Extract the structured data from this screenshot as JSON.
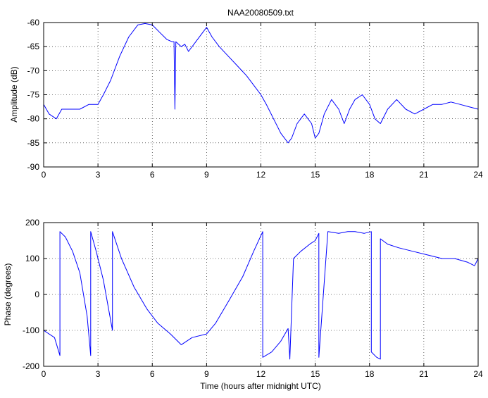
{
  "chart_data": [
    {
      "type": "line",
      "title": "NAA20080509.txt",
      "xlabel": "",
      "ylabel": "Amplitude (dB)",
      "xlim": [
        0,
        24
      ],
      "ylim": [
        -90,
        -60
      ],
      "xticks": [
        0,
        3,
        6,
        9,
        12,
        15,
        18,
        21,
        24
      ],
      "yticks": [
        -90,
        -85,
        -80,
        -75,
        -70,
        -65,
        -60
      ],
      "grid": true,
      "color": "#0000ff",
      "series": [
        {
          "x": [
            0,
            0.3,
            0.7,
            1.0,
            1.5,
            2.0,
            2.5,
            3.0,
            3.3,
            3.7,
            4.2,
            4.7,
            5.2,
            5.6,
            6.0,
            6.4,
            6.8,
            7.1,
            7.2,
            7.25,
            7.3,
            7.6,
            7.8,
            8.0,
            8.4,
            8.8,
            9.0,
            9.3,
            9.7,
            10.2,
            10.7,
            11.2,
            11.6,
            12.0,
            12.3,
            12.7,
            13.1,
            13.5,
            13.7,
            14.0,
            14.4,
            14.8,
            15.0,
            15.2,
            15.5,
            15.9,
            16.3,
            16.6,
            16.9,
            17.2,
            17.6,
            18.0,
            18.3,
            18.6,
            19.0,
            19.5,
            20.0,
            20.5,
            21.0,
            21.5,
            22.0,
            22.5,
            23.0,
            23.5,
            24.0
          ],
          "y": [
            -77,
            -79,
            -80,
            -78,
            -78,
            -78,
            -77,
            -77,
            -75,
            -72,
            -67,
            -63,
            -60.5,
            -60.2,
            -60.5,
            -62,
            -63.5,
            -64,
            -64,
            -78,
            -64,
            -65,
            -64.5,
            -66,
            -64,
            -62,
            -61,
            -63,
            -65,
            -67,
            -69,
            -71,
            -73,
            -75,
            -77,
            -80,
            -83,
            -85,
            -84,
            -81,
            -79,
            -81,
            -84,
            -83,
            -79,
            -76,
            -78,
            -81,
            -78,
            -76,
            -75,
            -77,
            -80,
            -81,
            -78,
            -76,
            -78,
            -79,
            -78,
            -77,
            -77,
            -76.5,
            -77,
            -77.5,
            -78
          ]
        }
      ]
    },
    {
      "type": "line",
      "title": "",
      "xlabel": "Time (hours after midnight UTC)",
      "ylabel": "Phase (degrees)",
      "xlim": [
        0,
        24
      ],
      "ylim": [
        -200,
        200
      ],
      "xticks": [
        0,
        3,
        6,
        9,
        12,
        15,
        18,
        21,
        24
      ],
      "yticks": [
        -200,
        -100,
        0,
        100,
        200
      ],
      "grid": true,
      "color": "#0000ff",
      "series": [
        {
          "x": [
            0,
            0.6,
            0.9,
            0.9,
            1.2,
            1.6,
            2.0,
            2.4,
            2.6,
            2.6,
            2.9,
            3.3,
            3.8,
            3.8,
            4.3,
            5.0,
            5.7,
            6.3,
            7.0,
            7.6,
            8.2,
            9.0,
            9.5,
            10.2,
            11.0,
            11.6,
            12.1,
            12.1,
            12.6,
            13.1,
            13.5,
            13.6,
            13.8,
            14.2,
            14.7,
            15.0,
            15.2,
            15.2,
            15.7,
            16.3,
            16.8,
            17.2,
            17.7,
            18.1,
            18.1,
            18.4,
            18.6,
            18.6,
            19.0,
            19.6,
            20.4,
            21.2,
            22.0,
            22.7,
            23.4,
            23.8,
            24.0
          ],
          "y": [
            -100,
            -120,
            -170,
            175,
            160,
            120,
            60,
            -60,
            -170,
            175,
            120,
            40,
            -100,
            175,
            100,
            20,
            -40,
            -80,
            -110,
            -140,
            -120,
            -110,
            -80,
            -20,
            50,
            120,
            175,
            -175,
            -160,
            -130,
            -95,
            -180,
            100,
            120,
            140,
            150,
            170,
            -175,
            175,
            170,
            175,
            175,
            170,
            175,
            -160,
            -175,
            -180,
            155,
            140,
            130,
            120,
            110,
            100,
            100,
            90,
            80,
            100
          ]
        }
      ]
    }
  ]
}
